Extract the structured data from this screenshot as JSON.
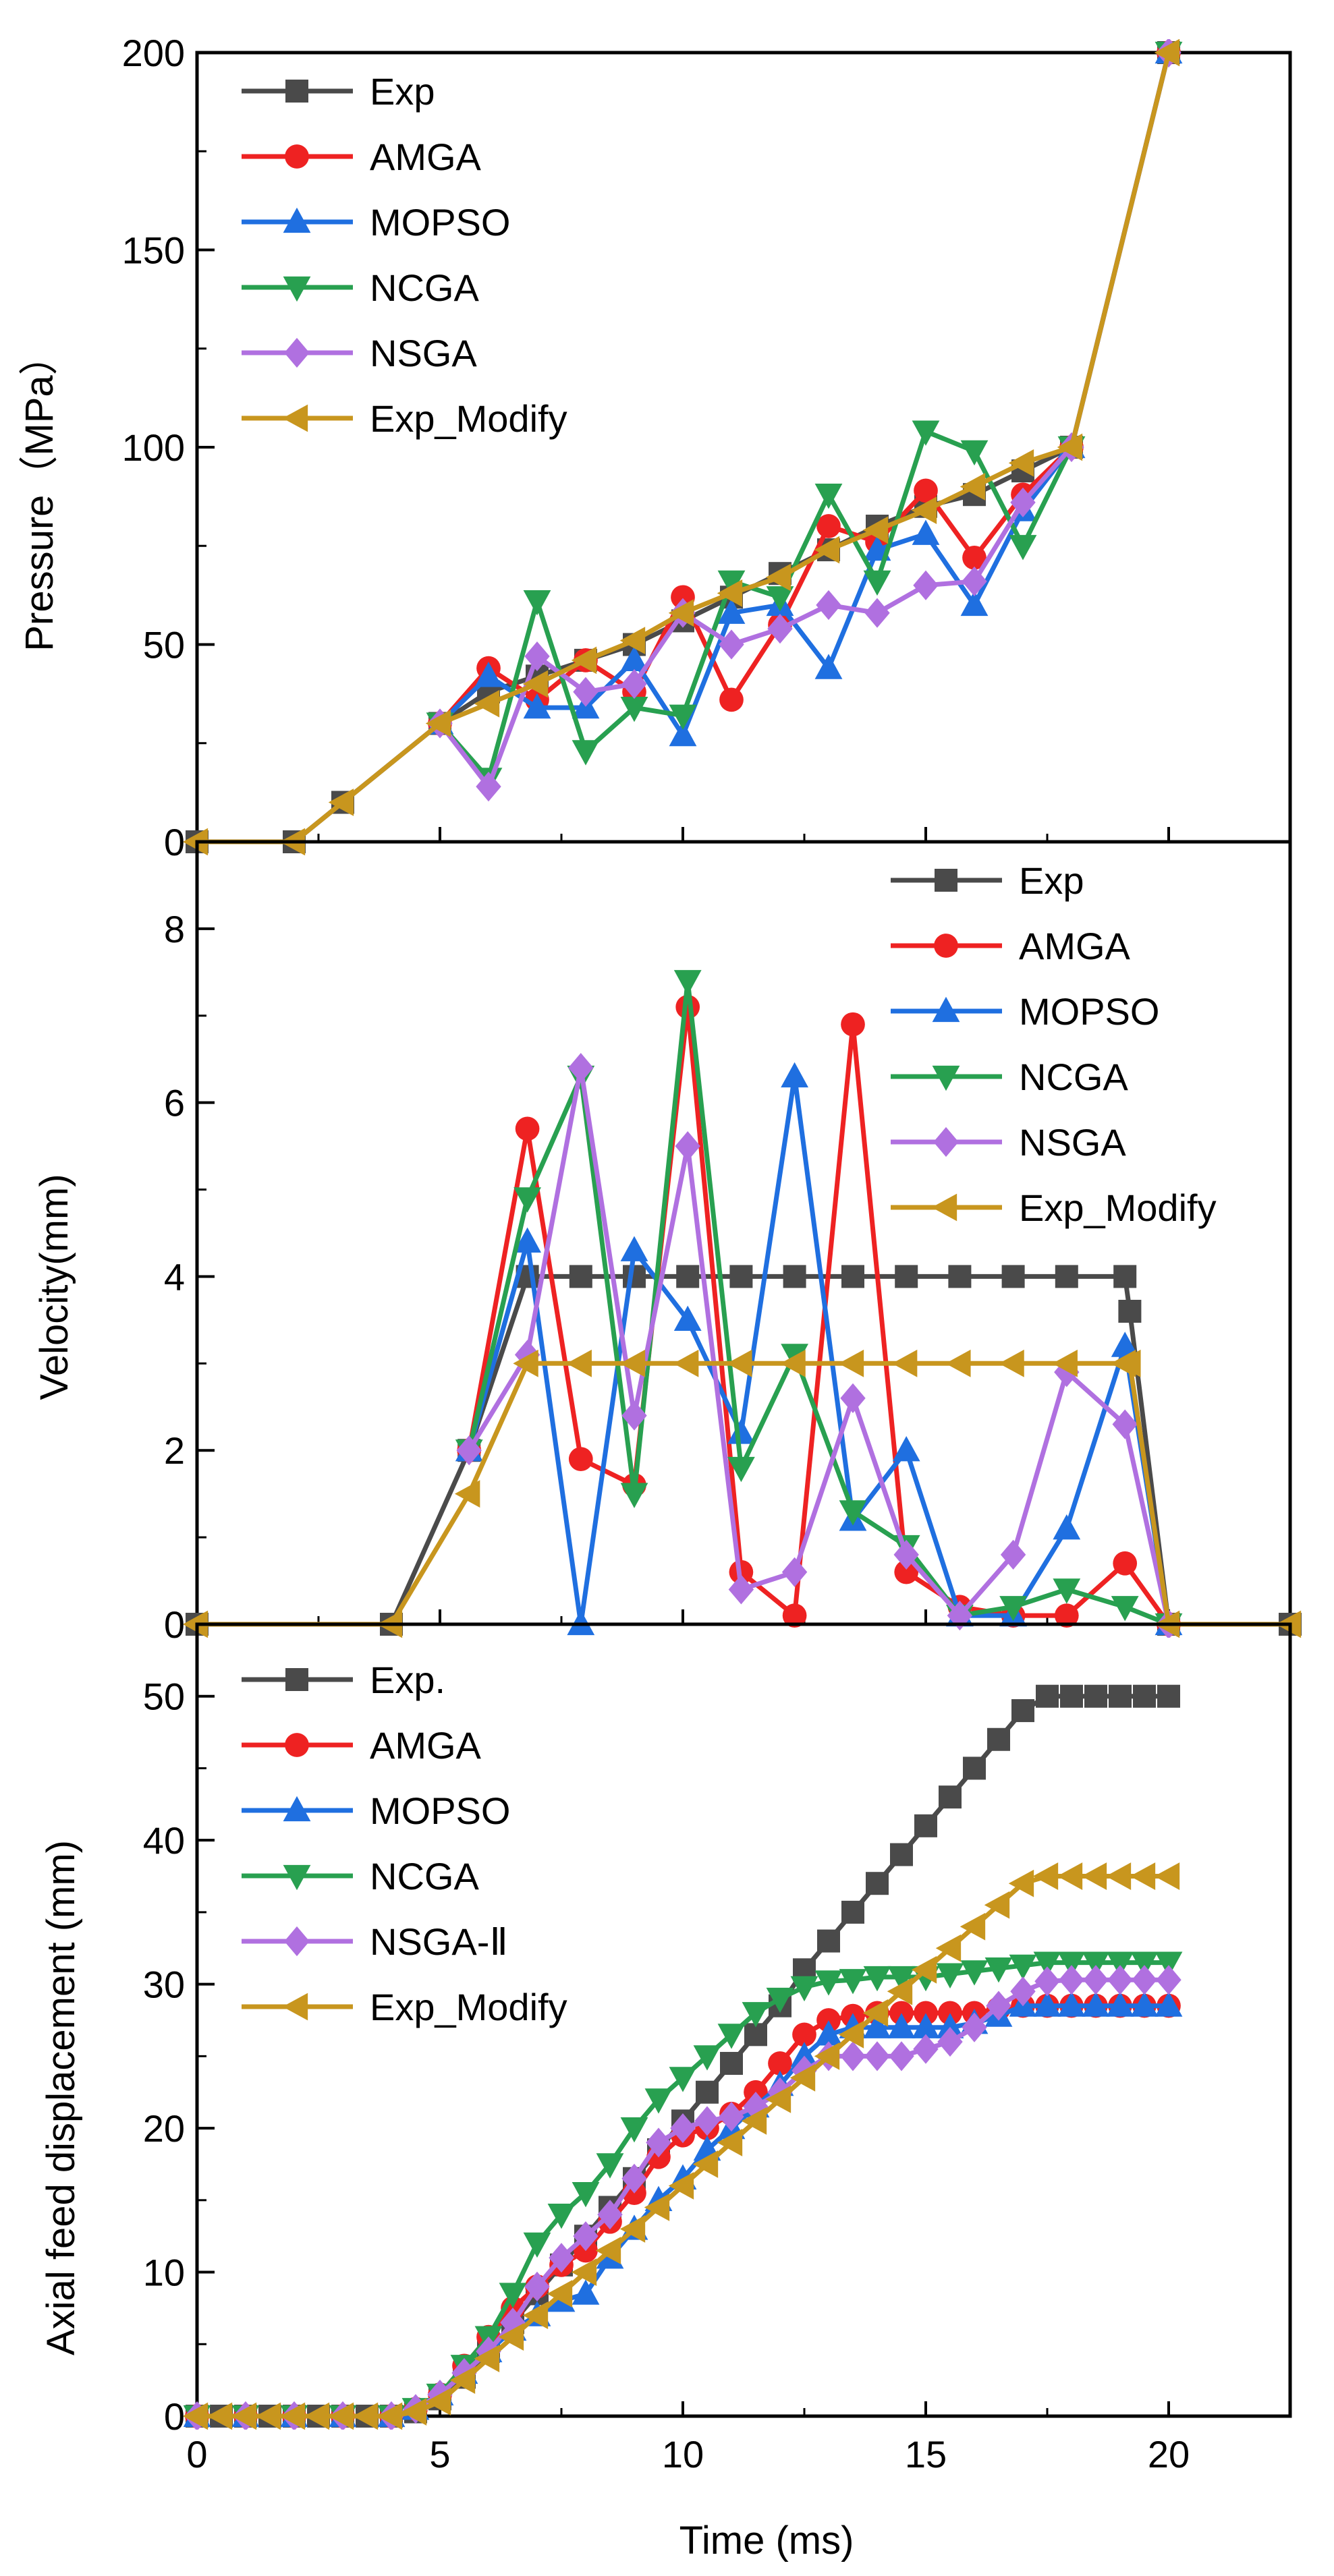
{
  "figure": {
    "xlabel": "Time (ms)",
    "xlim": [
      0,
      22.5
    ],
    "xticks": [
      0,
      5,
      10,
      15,
      20
    ]
  },
  "chart_data": [
    {
      "type": "line",
      "ylabel": "Pressure（MPa）",
      "ylim": [
        0,
        200
      ],
      "yticks": [
        0,
        50,
        100,
        150,
        200
      ],
      "series": [
        {
          "name": "Exp",
          "color": "#4a4a4a",
          "marker": "square",
          "x": [
            0,
            2,
            3,
            5,
            6,
            7,
            8,
            9,
            10,
            11,
            12,
            13,
            14,
            15,
            16,
            17,
            18,
            20
          ],
          "y": [
            0,
            0,
            10,
            30,
            38,
            42,
            46,
            50,
            56,
            62,
            68,
            74,
            80,
            85,
            88,
            94,
            100,
            200
          ]
        },
        {
          "name": "AMGA",
          "color": "#ee2222",
          "marker": "circle",
          "x": [
            5,
            6,
            7,
            8,
            9,
            10,
            11,
            12,
            13,
            14,
            15,
            16,
            17,
            18,
            20
          ],
          "y": [
            30,
            44,
            36,
            46,
            38,
            62,
            36,
            55,
            80,
            76,
            89,
            72,
            88,
            100,
            200
          ]
        },
        {
          "name": "MOPSO",
          "color": "#1f6fe0",
          "marker": "triangle-up",
          "x": [
            5,
            6,
            7,
            8,
            9,
            10,
            11,
            12,
            13,
            14,
            15,
            16,
            17,
            18,
            20
          ],
          "y": [
            30,
            42,
            34,
            34,
            46,
            27,
            58,
            60,
            44,
            74,
            78,
            60,
            84,
            100,
            200
          ]
        },
        {
          "name": "NCGA",
          "color": "#28a050",
          "marker": "triangle-down",
          "x": [
            5,
            6,
            7,
            8,
            9,
            10,
            11,
            12,
            13,
            14,
            15,
            16,
            17,
            18,
            20
          ],
          "y": [
            30,
            16,
            61,
            23,
            34,
            32,
            66,
            62,
            88,
            66,
            104,
            99,
            75,
            100,
            200
          ]
        },
        {
          "name": "NSGA",
          "color": "#b070e0",
          "marker": "diamond",
          "x": [
            5,
            6,
            7,
            8,
            9,
            10,
            11,
            12,
            13,
            14,
            15,
            16,
            17,
            18,
            20
          ],
          "y": [
            30,
            14,
            47,
            38,
            40,
            58,
            50,
            54,
            60,
            58,
            65,
            66,
            86,
            100,
            200
          ]
        },
        {
          "name": "Exp_Modify",
          "color": "#c8961e",
          "marker": "triangle-left",
          "x": [
            0,
            2,
            3,
            5,
            6,
            7,
            8,
            9,
            10,
            11,
            12,
            13,
            14,
            15,
            16,
            17,
            18,
            20
          ],
          "y": [
            0,
            0,
            10,
            30,
            35,
            40,
            46,
            51,
            58,
            63,
            67,
            74,
            79,
            84,
            90,
            96,
            100,
            200
          ]
        }
      ]
    },
    {
      "type": "line",
      "ylabel": "Velocity(mm)",
      "ylim": [
        0,
        9
      ],
      "yticks": [
        0,
        2,
        4,
        6,
        8
      ],
      "series": [
        {
          "name": "Exp",
          "color": "#4a4a4a",
          "marker": "square",
          "x": [
            0,
            4,
            5.6,
            6.8,
            7.9,
            9,
            10.1,
            11.2,
            12.3,
            13.5,
            14.6,
            15.7,
            16.8,
            17.9,
            19.1,
            19.2,
            20,
            22.5
          ],
          "y": [
            0,
            0,
            2,
            4,
            4,
            4,
            4,
            4,
            4,
            4,
            4,
            4,
            4,
            4,
            4,
            3.6,
            0,
            0
          ]
        },
        {
          "name": "AMGA",
          "color": "#ee2222",
          "marker": "circle",
          "x": [
            5.6,
            6.8,
            7.9,
            9,
            10.1,
            11.2,
            12.3,
            13.5,
            14.6,
            15.7,
            16.8,
            17.9,
            19.1,
            20
          ],
          "y": [
            2,
            5.7,
            1.9,
            1.6,
            7.1,
            0.6,
            0.1,
            6.9,
            0.6,
            0.2,
            0.1,
            0.1,
            0.7,
            0
          ]
        },
        {
          "name": "MOPSO",
          "color": "#1f6fe0",
          "marker": "triangle-up",
          "x": [
            5.6,
            6.8,
            7.9,
            9,
            10.1,
            11.2,
            12.3,
            13.5,
            14.6,
            15.7,
            16.8,
            17.9,
            19.1,
            20
          ],
          "y": [
            2,
            4.4,
            0,
            4.3,
            3.5,
            2.2,
            6.3,
            1.2,
            2,
            0.1,
            0.1,
            1.1,
            3.2,
            0
          ]
        },
        {
          "name": "NCGA",
          "color": "#28a050",
          "marker": "triangle-down",
          "x": [
            5.6,
            6.8,
            7.9,
            9,
            10.1,
            11.2,
            12.3,
            13.5,
            14.6,
            15.7,
            16.8,
            17.9,
            19.1,
            20
          ],
          "y": [
            2,
            4.9,
            6.3,
            1.5,
            7.4,
            1.8,
            3.1,
            1.3,
            0.9,
            0.1,
            0.2,
            0.4,
            0.2,
            0
          ]
        },
        {
          "name": "NSGA",
          "color": "#b070e0",
          "marker": "diamond",
          "x": [
            5.6,
            6.8,
            7.9,
            9,
            10.1,
            11.2,
            12.3,
            13.5,
            14.6,
            15.7,
            16.8,
            17.9,
            19.1,
            20
          ],
          "y": [
            2,
            3.1,
            6.4,
            2.4,
            5.5,
            0.4,
            0.6,
            2.6,
            0.8,
            0.1,
            0.8,
            2.9,
            2.3,
            0
          ]
        },
        {
          "name": "Exp_Modify",
          "color": "#c8961e",
          "marker": "triangle-left",
          "x": [
            0,
            4,
            5.6,
            6.8,
            7.9,
            9,
            10.1,
            11.2,
            12.3,
            13.5,
            14.6,
            15.7,
            16.8,
            17.9,
            19.1,
            19.2,
            20,
            22.5
          ],
          "y": [
            0,
            0,
            1.5,
            3,
            3,
            3,
            3,
            3,
            3,
            3,
            3,
            3,
            3,
            3,
            3,
            3,
            0,
            0
          ]
        }
      ]
    },
    {
      "type": "line",
      "ylabel": "Axial feed displacement (mm)",
      "ylim": [
        0,
        55
      ],
      "yticks": [
        0,
        10,
        20,
        30,
        40,
        50
      ],
      "series": [
        {
          "name": "Exp.",
          "color": "#4a4a4a",
          "marker": "square",
          "x": [
            0,
            0.5,
            1,
            1.5,
            2,
            2.5,
            3,
            3.5,
            4,
            4.5,
            5,
            5.5,
            6,
            6.5,
            7,
            7.5,
            8,
            8.5,
            9,
            9.5,
            10,
            10.5,
            11,
            11.5,
            12,
            12.5,
            13,
            13.5,
            14,
            14.5,
            15,
            15.5,
            16,
            16.5,
            17,
            17.5,
            18,
            18.5,
            19,
            19.5,
            20
          ],
          "y": [
            0,
            0,
            0,
            0,
            0,
            0,
            0,
            0,
            0,
            0.3,
            1.2,
            2.7,
            4.5,
            6.5,
            8.5,
            10.5,
            12.5,
            14.5,
            16.5,
            18.5,
            20.5,
            22.5,
            24.5,
            26.5,
            28.5,
            31,
            33,
            35,
            37,
            39,
            41,
            43,
            45,
            47,
            49,
            50,
            50,
            50,
            50,
            50,
            50
          ]
        },
        {
          "name": "AMGA",
          "color": "#ee2222",
          "marker": "circle",
          "x": [
            0,
            1,
            2,
            3,
            4,
            4.5,
            5,
            5.5,
            6,
            6.5,
            7,
            7.5,
            8,
            8.5,
            9,
            9.5,
            10,
            10.5,
            11,
            11.5,
            12,
            12.5,
            13,
            13.5,
            14,
            14.5,
            15,
            15.5,
            16,
            16.5,
            17,
            17.5,
            18,
            18.5,
            19,
            19.5,
            20
          ],
          "y": [
            0,
            0,
            0,
            0,
            0,
            0.5,
            1.5,
            3.5,
            5.5,
            7.5,
            9,
            10.5,
            11.5,
            13.5,
            15.5,
            18,
            19.5,
            20,
            21,
            22.5,
            24.5,
            26.5,
            27.5,
            27.8,
            28,
            28,
            28,
            28,
            28,
            28.3,
            28.5,
            28.5,
            28.5,
            28.5,
            28.5,
            28.5,
            28.5
          ]
        },
        {
          "name": "MOPSO",
          "color": "#1f6fe0",
          "marker": "triangle-up",
          "x": [
            0,
            1,
            2,
            3,
            4,
            4.5,
            5,
            5.5,
            6,
            6.5,
            7,
            7.5,
            8,
            8.5,
            9,
            9.5,
            10,
            10.5,
            11,
            11.5,
            12,
            12.5,
            13,
            13.5,
            14,
            14.5,
            15,
            15.5,
            16,
            16.5,
            17,
            17.5,
            18,
            18.5,
            19,
            19.5,
            20
          ],
          "y": [
            0,
            0,
            0,
            0,
            0,
            0.5,
            1.5,
            3,
            4.5,
            6,
            7,
            8,
            8.5,
            11,
            13,
            15,
            16.5,
            18.5,
            20,
            21.5,
            23,
            25,
            26.5,
            27,
            27,
            27,
            27,
            27,
            27.3,
            27.8,
            28.5,
            28.5,
            28.5,
            28.5,
            28.5,
            28.5,
            28.5
          ]
        },
        {
          "name": "NCGA",
          "color": "#28a050",
          "marker": "triangle-down",
          "x": [
            0,
            1,
            2,
            3,
            4,
            4.5,
            5,
            5.5,
            6,
            6.5,
            7,
            7.5,
            8,
            8.5,
            9,
            9.5,
            10,
            10.5,
            11,
            11.5,
            12,
            12.5,
            13,
            13.5,
            14,
            14.5,
            15,
            15.5,
            16,
            16.5,
            17,
            17.5,
            18,
            18.5,
            19,
            19.5,
            20
          ],
          "y": [
            0,
            0,
            0,
            0,
            0,
            0.5,
            1.5,
            3.5,
            5.5,
            8.5,
            12,
            14,
            15.5,
            17.5,
            20,
            22,
            23.5,
            25,
            26.5,
            28,
            29,
            29.8,
            30.2,
            30.3,
            30.5,
            30.5,
            30.5,
            30.7,
            30.9,
            31.1,
            31.3,
            31.5,
            31.5,
            31.5,
            31.5,
            31.5,
            31.5
          ]
        },
        {
          "name": "NSGA-Ⅱ",
          "color": "#b070e0",
          "marker": "diamond",
          "x": [
            0,
            1,
            2,
            3,
            4,
            4.5,
            5,
            5.5,
            6,
            6.5,
            7,
            7.5,
            8,
            8.5,
            9,
            9.5,
            10,
            10.5,
            11,
            11.5,
            12,
            12.5,
            13,
            13.5,
            14,
            14.5,
            15,
            15.5,
            16,
            16.5,
            17,
            17.5,
            18,
            18.5,
            19,
            19.5,
            20
          ],
          "y": [
            0,
            0,
            0,
            0,
            0,
            0.5,
            1.5,
            3,
            4.5,
            6.5,
            9,
            11,
            12.5,
            14,
            16.5,
            19,
            20,
            20.5,
            20.8,
            21.5,
            22.5,
            24,
            25,
            25,
            25,
            25,
            25.5,
            26,
            27,
            28.5,
            29.5,
            30.2,
            30.3,
            30.3,
            30.3,
            30.3,
            30.3
          ]
        },
        {
          "name": "Exp_Modify",
          "color": "#c8961e",
          "marker": "triangle-left",
          "x": [
            0,
            0.5,
            1,
            1.5,
            2,
            2.5,
            3,
            3.5,
            4,
            4.5,
            5,
            5.5,
            6,
            6.5,
            7,
            7.5,
            8,
            8.5,
            9,
            9.5,
            10,
            10.5,
            11,
            11.5,
            12,
            12.5,
            13,
            13.5,
            14,
            14.5,
            15,
            15.5,
            16,
            16.5,
            17,
            17.5,
            18,
            18.5,
            19,
            19.5,
            20
          ],
          "y": [
            0,
            0,
            0,
            0,
            0,
            0,
            0,
            0,
            0,
            0.3,
            1,
            2.5,
            4,
            5.5,
            7,
            8.5,
            10,
            11.5,
            13,
            14.5,
            16,
            17.5,
            19,
            20.5,
            22,
            23.5,
            25,
            26.5,
            28,
            29.5,
            31,
            32.5,
            34,
            35.5,
            37,
            37.5,
            37.5,
            37.5,
            37.5,
            37.5,
            37.5
          ]
        }
      ]
    }
  ]
}
